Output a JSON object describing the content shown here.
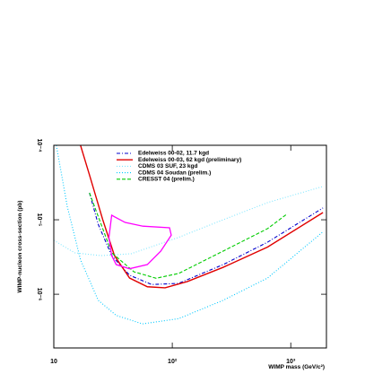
{
  "chart_data": {
    "type": "line",
    "xlabel": "WIMP mass (GeV/c²)",
    "ylabel": "WIMP-nucleon cross-section (pb)",
    "xscale": "log",
    "yscale": "log",
    "xlim": [
      10,
      2000
    ],
    "ylim": [
      1.9e-07,
      0.0001
    ],
    "xticks": [
      10,
      {
        "value": 100,
        "label": "10²"
      },
      {
        "value": 1000,
        "label": "10³"
      }
    ],
    "yticks": [
      {
        "value": 0.0001,
        "label": "10⁻⁴"
      },
      {
        "value": 1e-05,
        "label": "10⁻⁵"
      },
      {
        "value": 1e-06,
        "label": "10⁻⁶"
      }
    ],
    "legend": "upper right",
    "series": [
      {
        "name": "Edelweiss 00-02, 11.7 kgd",
        "color": "#0000cc",
        "dash": "dashdot",
        "x": [
          20,
          23.7,
          30.8,
          43.6,
          67,
          113,
          269,
          637,
          1870
        ],
        "values": [
          2.3e-05,
          8.7e-06,
          3.3e-06,
          1.8e-06,
          1.35e-06,
          1.4e-06,
          2.5e-06,
          5e-06,
          1.44e-05
        ]
      },
      {
        "name": "Edelweiss 00-03, 62 kgd (preliminary)",
        "color": "#e00000",
        "dash": "solid",
        "x": [
          16.8,
          20,
          25.9,
          32.5,
          43.6,
          61.6,
          86.9,
          134,
          269,
          637,
          1870
        ],
        "values": [
          0.0001,
          4e-05,
          1e-05,
          3.3e-06,
          1.65e-06,
          1.26e-06,
          1.22e-06,
          1.48e-06,
          2.3e-06,
          4.3e-06,
          1.25e-05
        ]
      },
      {
        "name": "CDMS 03 SUF, 23 kgd",
        "color": "#7fe6ff",
        "dash": "dot",
        "x": [
          10,
          15,
          25,
          45,
          113,
          269,
          637,
          1870
        ],
        "values": [
          5.3e-06,
          3.6e-06,
          3.3e-06,
          3.5e-06,
          5.8e-06,
          1e-05,
          1.7e-05,
          2.8e-05
        ]
      },
      {
        "name": "CDMS 04 Soudan (prelim.)",
        "color": "#00c8ff",
        "dash": "dot",
        "x": [
          10.5,
          13,
          16.8,
          23.7,
          33.6,
          56,
          113,
          269,
          637,
          1870
        ],
        "values": [
          0.0001,
          1.5e-05,
          2.9e-06,
          8.3e-07,
          5.2e-07,
          4e-07,
          4.7e-07,
          8.3e-07,
          1.65e-06,
          6.9e-06
        ]
      },
      {
        "name": "CRESST 04 (prelim.)",
        "color": "#00cc00",
        "dash": "dash",
        "x": [
          20,
          30.8,
          47.5,
          73,
          113,
          269,
          637,
          933
        ],
        "values": [
          2.3e-05,
          3.6e-06,
          2e-06,
          1.64e-06,
          1.9e-06,
          3.8e-06,
          7.6e-06,
          1.2e-05
        ]
      }
    ],
    "region": {
      "color": "#ff00ff",
      "x": [
        30.8,
        40,
        56.5,
        94.8,
        98,
        80,
        61.5,
        43.5,
        33.6,
        30.8,
        29.2
      ],
      "values": [
        1.15e-05,
        9.2e-06,
        8.2e-06,
        7.8e-06,
        6.2e-06,
        3.8e-06,
        2.5e-06,
        2.2e-06,
        2.5e-06,
        3.3e-06,
        5.8e-06
      ]
    }
  }
}
